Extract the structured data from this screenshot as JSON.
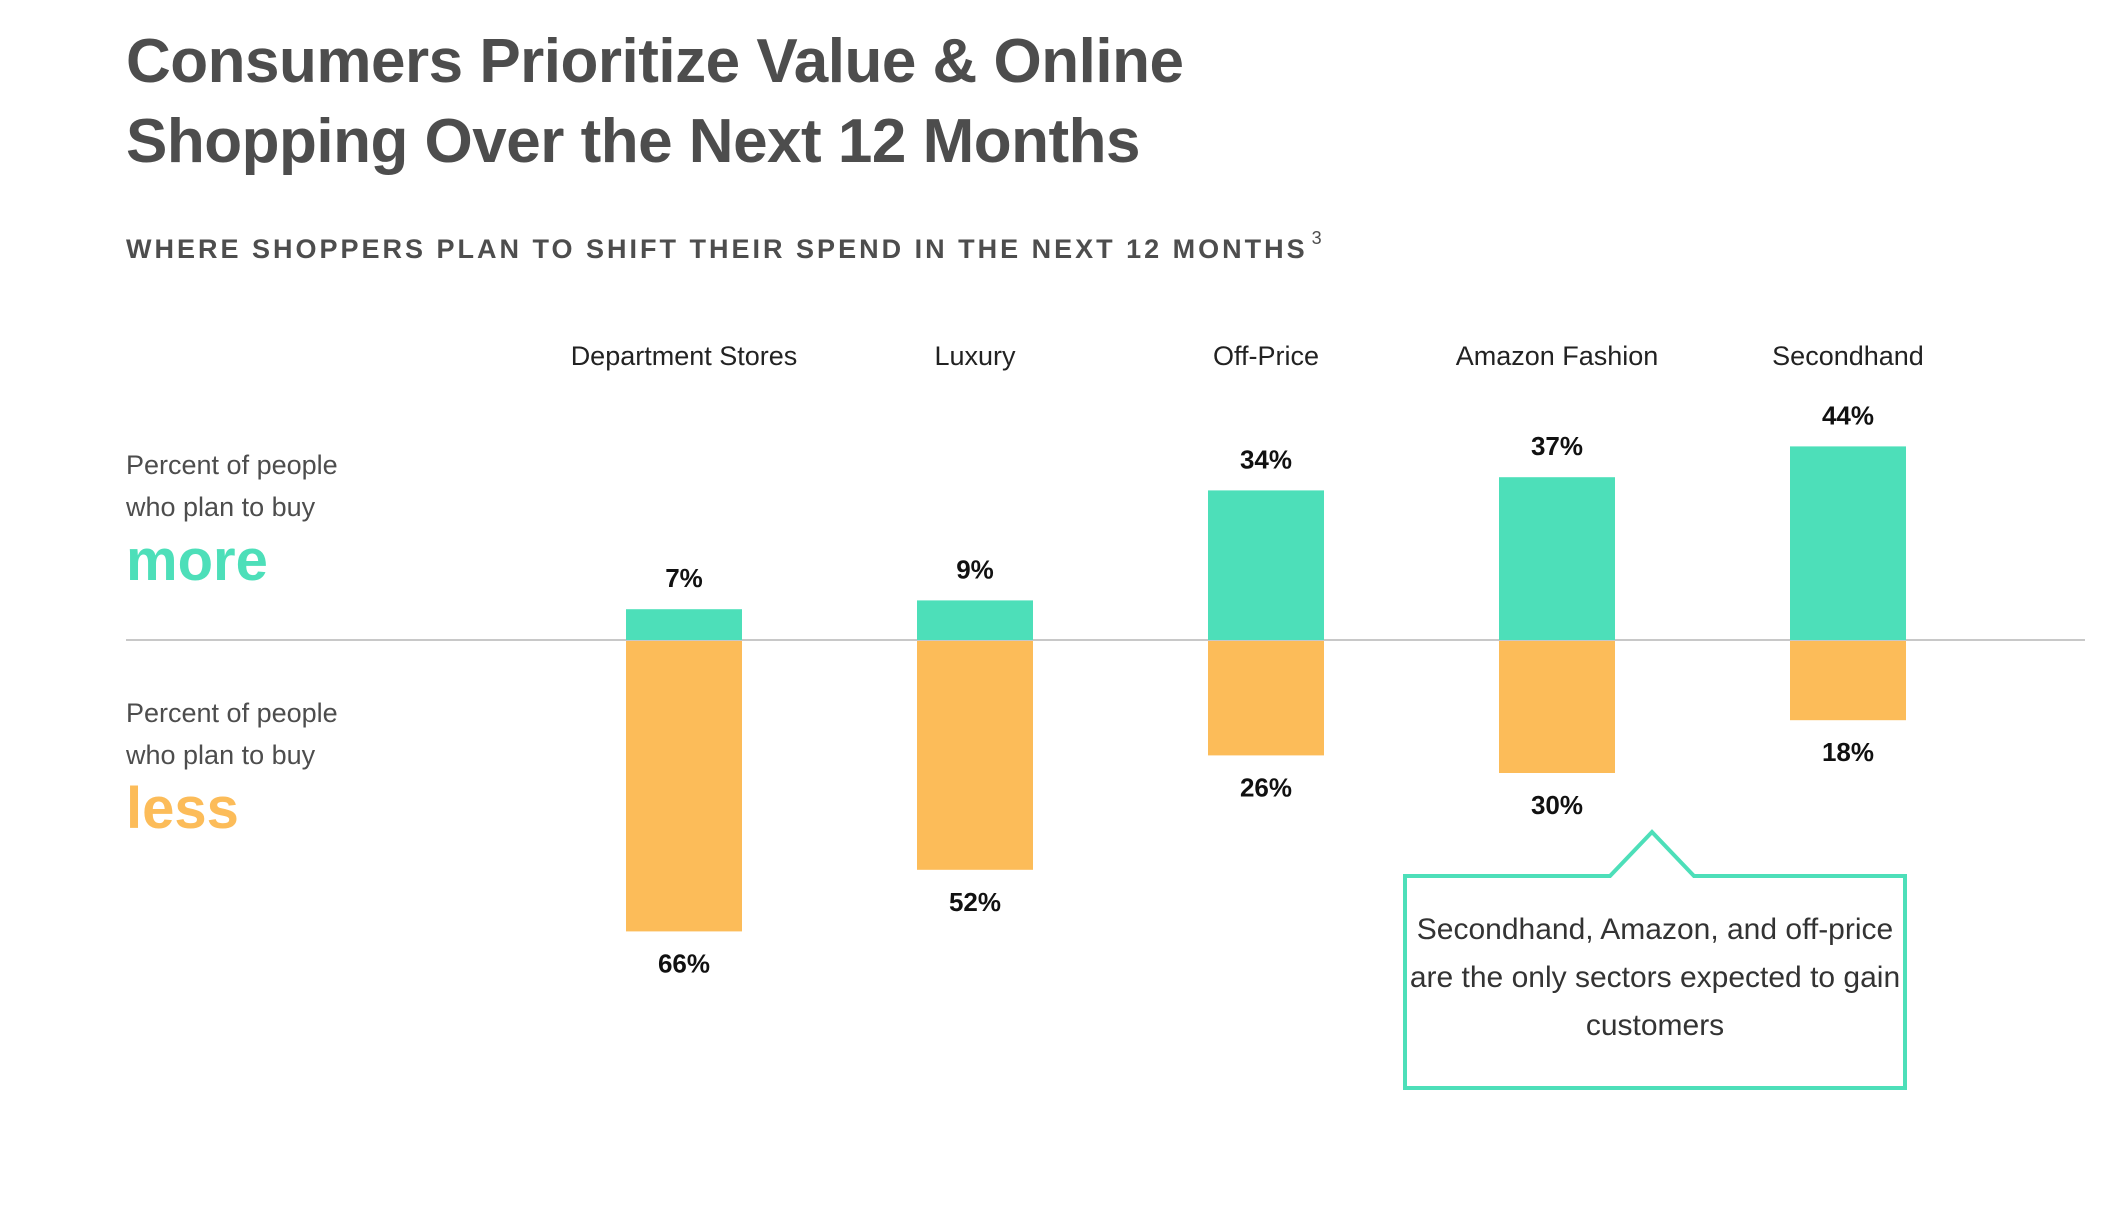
{
  "title": {
    "line1": "Consumers Prioritize Value & Online",
    "line2": "Shopping Over the Next 12 Months"
  },
  "subtitle": {
    "text": "WHERE SHOPPERS PLAN TO SHIFT THEIR SPEND IN THE NEXT 12 MONTHS",
    "footnote": "3"
  },
  "legend": {
    "more": {
      "line1": "Percent of people",
      "line2": "who plan to buy",
      "word": "more"
    },
    "less": {
      "line1": "Percent of people",
      "line2": "who plan to buy",
      "word": "less"
    }
  },
  "callout": {
    "text": "Secondhand, Amazon, and off-price are the only sectors expected to gain customers"
  },
  "colors": {
    "more": "#4ddfb9",
    "less": "#fcbc59",
    "text": "#4d4d4d",
    "axis": "#c8c8c8"
  },
  "chart_data": {
    "type": "bar",
    "categories": [
      "Department Stores",
      "Luxury",
      "Off-Price",
      "Amazon Fashion",
      "Secondhand"
    ],
    "series": [
      {
        "name": "more",
        "values": [
          7,
          9,
          34,
          37,
          44
        ]
      },
      {
        "name": "less",
        "values": [
          66,
          52,
          26,
          30,
          18
        ]
      }
    ],
    "value_suffix": "%",
    "orientation": "diverging"
  }
}
